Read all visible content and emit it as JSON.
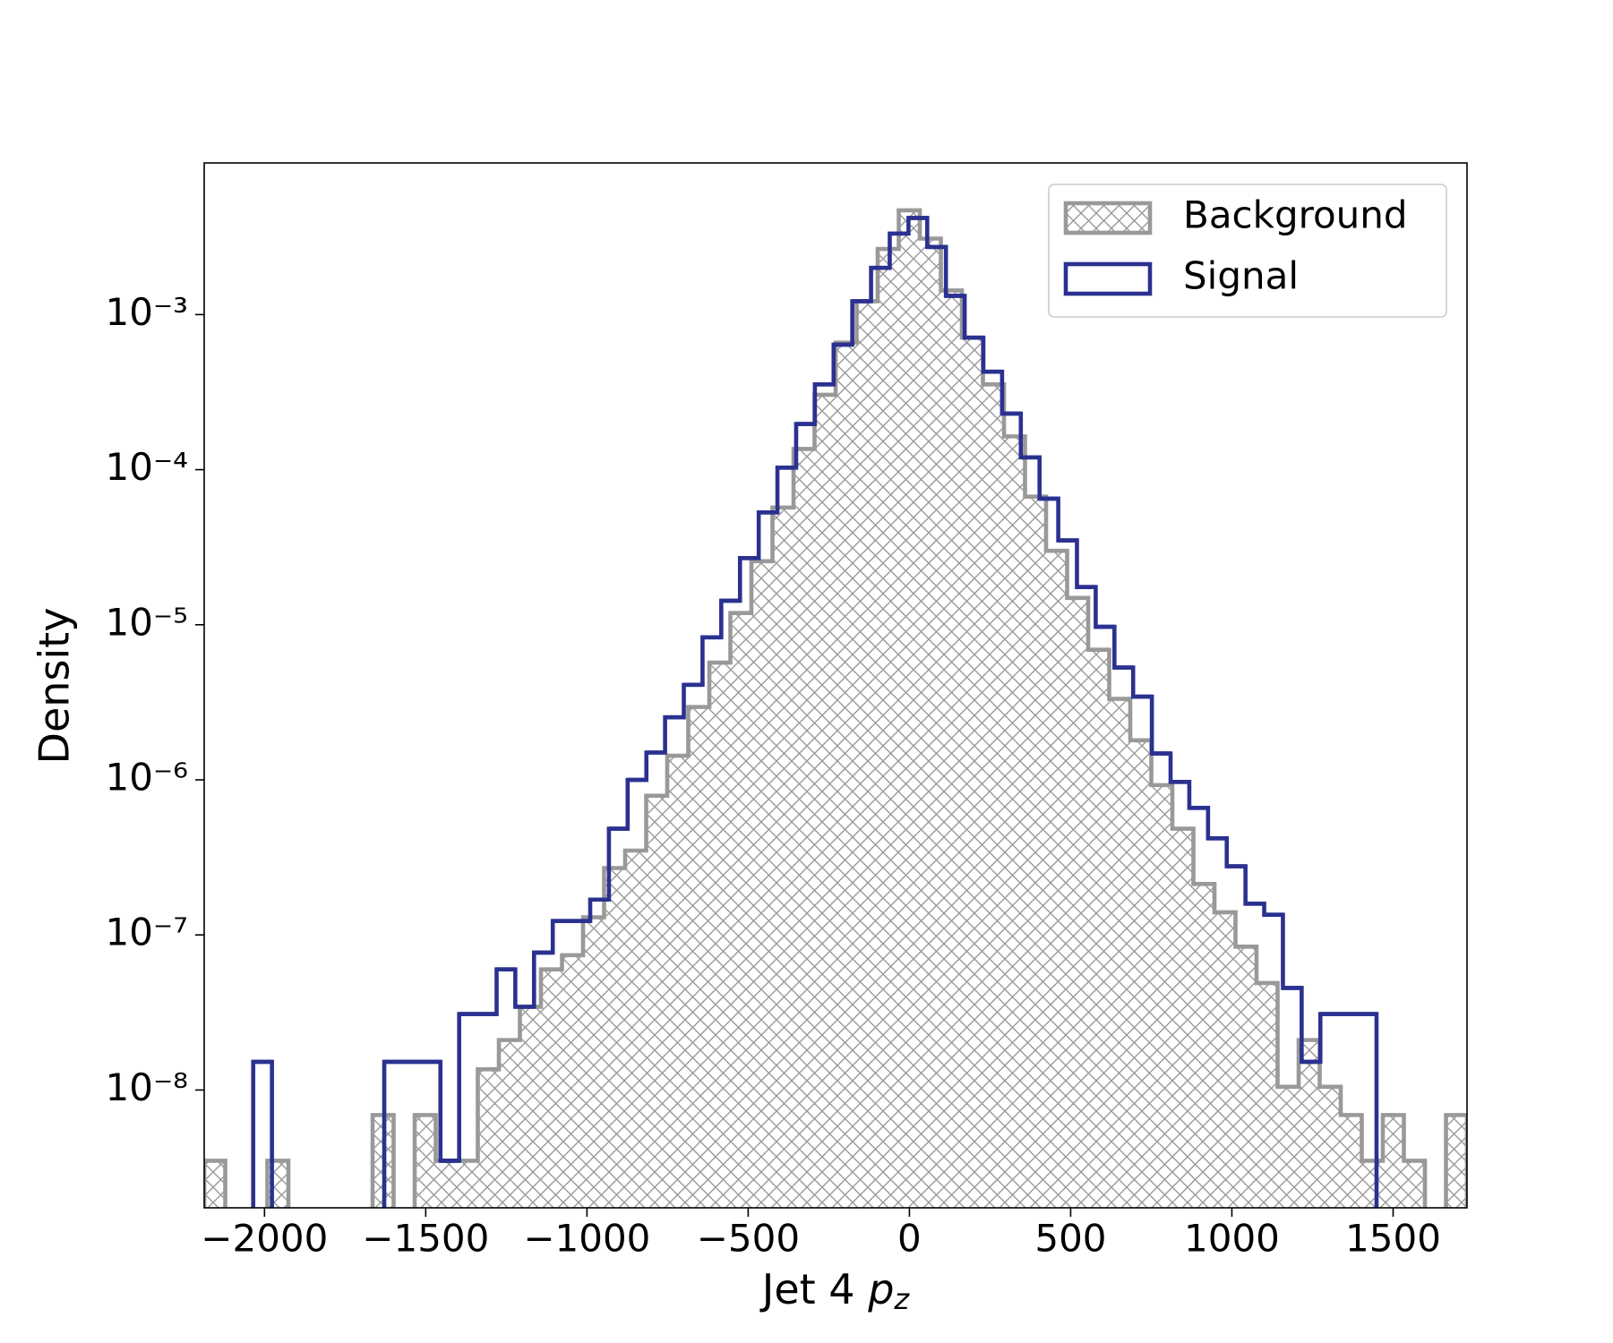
{
  "chart_data": {
    "type": "histogram",
    "xlabel": {
      "text": "Jet 4",
      "variable": "p",
      "subscript": "z"
    },
    "ylabel": "Density",
    "yscale": "log",
    "legend": "upper right",
    "xlim": [
      -2187,
      1729.2
    ],
    "ylim": [
      1.74e-09,
      0.0095
    ],
    "xticks": [
      {
        "value": -2000,
        "label": "−2000"
      },
      {
        "value": -1500,
        "label": "−1500"
      },
      {
        "value": -1000,
        "label": "−1000"
      },
      {
        "value": -500,
        "label": "−500"
      },
      0,
      500,
      1000,
      1500
    ],
    "yticks": [
      {
        "value": 1e-08,
        "label": "10⁻⁸"
      },
      {
        "value": 1e-07,
        "label": "10⁻⁷"
      },
      {
        "value": 1e-06,
        "label": "10⁻⁶"
      },
      {
        "value": 1e-05,
        "label": "10⁻⁵"
      },
      {
        "value": 0.0001,
        "label": "10⁻⁴"
      },
      {
        "value": 0.001,
        "label": "10⁻³"
      }
    ],
    "series": [
      {
        "name": "Background",
        "color": "#999999",
        "hatch": "xx",
        "bins": [
          -2187.0,
          -2121.7,
          -2056.5,
          -1991.2,
          -1925.9,
          -1860.7,
          -1795.4,
          -1730.1,
          -1664.8,
          -1599.6,
          -1534.3,
          -1469.0,
          -1403.8,
          -1338.5,
          -1273.2,
          -1208.0,
          -1142.7,
          -1077.4,
          -1012.1,
          -946.9,
          -881.6,
          -816.3,
          -751.1,
          -685.8,
          -620.5,
          -555.3,
          -490.0,
          -424.7,
          -359.4,
          -294.2,
          -228.9,
          -163.6,
          -98.4,
          -33.1,
          32.2,
          97.5,
          162.7,
          228.0,
          293.3,
          358.5,
          423.8,
          489.1,
          554.4,
          619.6,
          684.9,
          750.2,
          815.4,
          880.7,
          946.0,
          1011.2,
          1076.5,
          1141.8,
          1207.1,
          1272.3,
          1337.6,
          1402.9,
          1468.1,
          1533.4,
          1598.7,
          1664.0,
          1729.2
        ],
        "values": [
          3.5e-09,
          0,
          0,
          3.5e-09,
          0,
          0,
          0,
          0,
          6.9e-09,
          0,
          6.9e-09,
          3.5e-09,
          3.5e-09,
          1.36e-08,
          2.1e-08,
          3.44e-08,
          6e-08,
          7.4e-08,
          1.3e-07,
          2.7e-07,
          3.5e-07,
          7.9e-07,
          1.43e-06,
          2.95e-06,
          5.7e-06,
          1.19e-05,
          2.57e-05,
          5.7e-05,
          0.000136,
          0.000304,
          0.00066,
          0.00122,
          0.00265,
          0.0047,
          0.00309,
          0.00143,
          0.00071,
          0.000355,
          0.000164,
          6.7e-05,
          3e-05,
          1.49e-05,
          6.9e-06,
          3.33e-06,
          1.8e-06,
          9.25e-07,
          4.84e-07,
          2.13e-07,
          1.4e-07,
          8.4e-08,
          4.9e-08,
          1.05e-08,
          2.1e-08,
          1.05e-08,
          6.9e-09,
          3.5e-09,
          6.9e-09,
          3.5e-09,
          0,
          6.9e-09
        ]
      },
      {
        "name": "Signal",
        "color": "#2b3190",
        "bins": [
          -2035.0,
          -1976.9,
          -1918.9,
          -1860.8,
          -1802.8,
          -1744.7,
          -1686.6,
          -1628.6,
          -1570.5,
          -1512.5,
          -1454.4,
          -1396.3,
          -1338.3,
          -1280.2,
          -1222.2,
          -1164.1,
          -1106.0,
          -1048.0,
          -989.9,
          -931.9,
          -873.8,
          -815.7,
          -757.7,
          -699.6,
          -641.6,
          -583.5,
          -525.4,
          -467.4,
          -409.3,
          -351.3,
          -293.2,
          -235.1,
          -177.1,
          -119.0,
          -61.0,
          -2.9,
          55.2,
          113.2,
          171.3,
          229.3,
          287.4,
          345.5,
          403.5,
          461.6,
          519.6,
          577.7,
          635.8,
          693.8,
          751.9,
          809.9,
          868.0,
          926.1,
          984.1,
          1042.2,
          1100.2,
          1158.3,
          1216.4,
          1274.4,
          1332.5,
          1390.5,
          1448.6
        ],
        "values": [
          1.52e-08,
          0,
          0,
          0,
          0,
          0,
          0,
          1.52e-08,
          1.52e-08,
          1.52e-08,
          3.5e-09,
          3.09e-08,
          3.09e-08,
          6e-08,
          3.44e-08,
          7.7e-08,
          1.23e-07,
          1.23e-07,
          1.69e-07,
          4.84e-07,
          1e-06,
          1.5e-06,
          2.53e-06,
          4.1e-06,
          8.3e-06,
          1.43e-05,
          2.69e-05,
          5.3e-05,
          0.000103,
          0.000197,
          0.000355,
          0.00064,
          0.00122,
          0.002,
          0.00333,
          0.0042,
          0.00273,
          0.00132,
          0.00071,
          0.000428,
          0.00023,
          0.00012,
          6.5e-05,
          3.5e-05,
          1.75e-05,
          9.7e-06,
          5.3e-06,
          3.44e-06,
          1.48e-06,
          9.7e-07,
          6.6e-07,
          4.2e-07,
          2.77e-07,
          1.59e-07,
          1.35e-07,
          4.55e-08,
          1.52e-08,
          3.09e-08,
          3.09e-08,
          3.09e-08
        ]
      }
    ]
  }
}
